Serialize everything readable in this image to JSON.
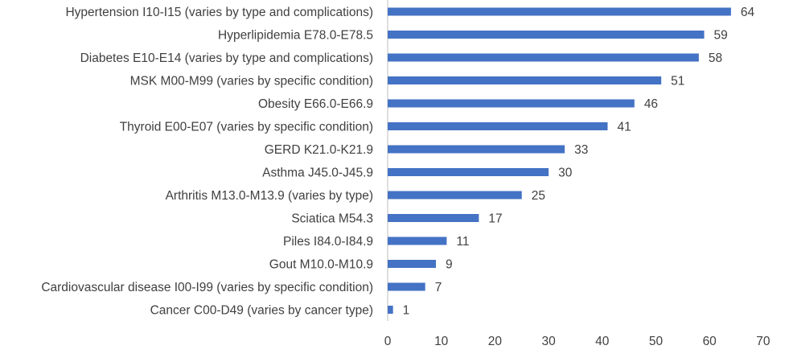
{
  "chart_data": {
    "type": "bar",
    "orientation": "horizontal",
    "categories": [
      "Hypertension I10-I15 (varies by type and complications)",
      "Hyperlipidemia E78.0-E78.5",
      "Diabetes E10-E14 (varies by type and complications)",
      "MSK M00-M99 (varies by specific condition)",
      "Obesity  E66.0-E66.9",
      "Thyroid E00-E07 (varies by specific condition)",
      "GERD K21.0-K21.9",
      "Asthma J45.0-J45.9",
      "Arthritis M13.0-M13.9 (varies by type)",
      "Sciatica M54.3",
      "Piles I84.0-I84.9",
      "Gout M10.0-M10.9",
      "Cardiovascular disease I00-I99 (varies by specific condition)",
      "Cancer C00-D49 (varies by cancer type)"
    ],
    "values": [
      64,
      59,
      58,
      51,
      46,
      41,
      33,
      30,
      25,
      17,
      11,
      9,
      7,
      1
    ],
    "value_labels": [
      "64",
      "59",
      "58",
      "51",
      "46",
      "41",
      "33",
      "30",
      "25",
      "17",
      "11",
      "9",
      "7",
      "1"
    ],
    "x_ticks": [
      "0",
      "10",
      "20",
      "30",
      "40",
      "50",
      "60",
      "70"
    ],
    "xlim": [
      0,
      70
    ],
    "title": "",
    "xlabel": "",
    "ylabel": "",
    "grid": false,
    "legend": "none",
    "bar_color": "#4472C4",
    "axis_color": "#BFBFBF",
    "text_color": "#404040"
  }
}
